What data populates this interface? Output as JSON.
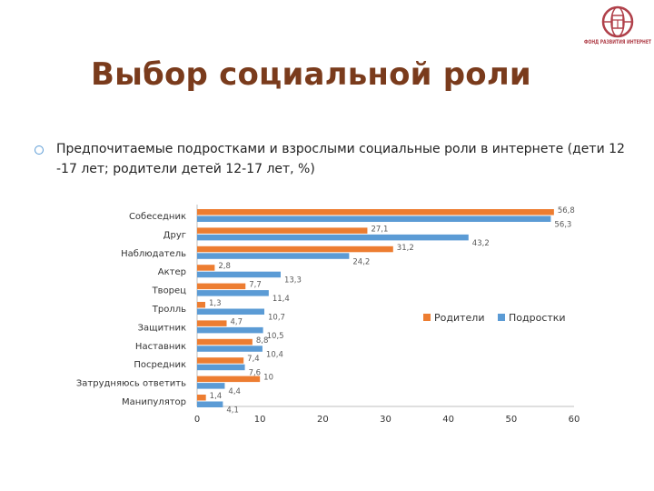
{
  "slide": {
    "title": "Выбор социальной роли",
    "subtitle": "Предпочитаемые подростками и взрослыми социальные роли в интернете (дети 12 -17 лет; родители детей 12-17 лет, %)",
    "logo_text": "ФОНД РАЗВИТИЯ ИНТЕРНЕТ"
  },
  "chart_data": {
    "type": "bar",
    "orientation": "horizontal",
    "categories": [
      "Собеседник",
      "Друг",
      "Наблюдатель",
      "Актер",
      "Творец",
      "Тролль",
      "Защитник",
      "Наставник",
      "Посредник",
      "Затрудняюсь ответить",
      "Манипулятор"
    ],
    "series": [
      {
        "name": "Родители",
        "color": "#ed7d31",
        "values": [
          56.8,
          27.1,
          31.2,
          2.8,
          7.7,
          1.3,
          4.7,
          8.8,
          7.4,
          10,
          1.4
        ]
      },
      {
        "name": "Подростки",
        "color": "#5b9bd5",
        "values": [
          56.3,
          43.2,
          24.2,
          13.3,
          11.4,
          10.7,
          10.5,
          10.4,
          7.6,
          4.4,
          4.1
        ]
      }
    ],
    "value_labels": {
      "Родители": [
        "56,8",
        "27,1",
        "31,2",
        "2,8",
        "7,7",
        "1,3",
        "4,7",
        "8,8",
        "7,4",
        "10",
        "1,4"
      ],
      "Подростки": [
        "56,3",
        "43,2",
        "24,2",
        "13,3",
        "11,4",
        "10,7",
        "10,5",
        "10,4",
        "7,6",
        "4,4",
        "4,1"
      ]
    },
    "xlim": [
      0,
      60
    ],
    "xticks": [
      0,
      10,
      20,
      30,
      40,
      50,
      60
    ],
    "grid": false,
    "legend_position": "right"
  },
  "colors": {
    "title": "#7a3b1c",
    "logo": "#b0404a",
    "bullet": "#5a9bd5",
    "axis": "#bfbfbf",
    "text": "#333333",
    "label": "#595959"
  }
}
